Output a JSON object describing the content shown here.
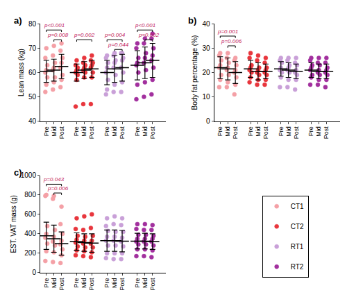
{
  "chart_data": [
    {
      "type": "scatter",
      "title": "a)",
      "y_label": "Lean mass (kg)",
      "categories": [
        "Pre",
        "Mid",
        "Post"
      ],
      "ylim": [
        40,
        80
      ],
      "yticks": [
        40,
        50,
        60,
        70,
        80
      ],
      "grid": false,
      "legend": "bottom right",
      "series": [
        {
          "name": "CT1",
          "color": "#f4a0a6",
          "values": [
            [
              52,
              55,
              58,
              60,
              61,
              63,
              66,
              70
            ],
            [
              53,
              56,
              58,
              61,
              62,
              64,
              67,
              71
            ],
            [
              54,
              57,
              59,
              62,
              64,
              66,
              69,
              72
            ]
          ],
          "mean": [
            60.5,
            61,
            62.5
          ],
          "sd": [
            4.5,
            4.5,
            5
          ]
        },
        {
          "name": "CT2",
          "color": "#e8363d",
          "values": [
            [
              46,
              57,
              59,
              60,
              61,
              62,
              63,
              65
            ],
            [
              47,
              58,
              60,
              61,
              62,
              63,
              64,
              66
            ],
            [
              47,
              58,
              60,
              62,
              63,
              64,
              65,
              67
            ]
          ],
          "mean": [
            60,
            61,
            61.5
          ],
          "sd": [
            3.5,
            3.5,
            3.5
          ]
        },
        {
          "name": "RT1",
          "color": "#c9a0d8",
          "values": [
            [
              51,
              53,
              57,
              60,
              62,
              64,
              66,
              67
            ],
            [
              52,
              55,
              59,
              62,
              64,
              65,
              67,
              68
            ],
            [
              52,
              56,
              60,
              62,
              65,
              66,
              68,
              68
            ]
          ],
          "mean": [
            60,
            61.5,
            62
          ],
          "sd": [
            5,
            5.5,
            5.5
          ]
        },
        {
          "name": "RT2",
          "color": "#a2309e",
          "values": [
            [
              49,
              55,
              60,
              63,
              64,
              66,
              70,
              72
            ],
            [
              50,
              56,
              61,
              64,
              66,
              68,
              72,
              74
            ],
            [
              51,
              57,
              62,
              65,
              67,
              70,
              74,
              76
            ]
          ],
          "mean": [
            63,
            64,
            65
          ],
          "sd": [
            6,
            6.5,
            7
          ]
        }
      ],
      "annotations": [
        {
          "text": "p<0.001",
          "group": "CT1",
          "from": "Pre",
          "to": "Post",
          "y": 77.5
        },
        {
          "text": "p=0.008",
          "group": "CT1",
          "from": "Mid",
          "to": "Post",
          "y": 73.5
        },
        {
          "text": "p=0.002",
          "group": "CT2",
          "from": "Pre",
          "to": "Post",
          "y": 73.5
        },
        {
          "text": "p=0.004",
          "group": "RT1",
          "from": "Pre",
          "to": "Post",
          "y": 73.5
        },
        {
          "text": "p=0.044",
          "group": "RT1",
          "from": "Mid",
          "to": "Post",
          "y": 69.5
        },
        {
          "text": "p<0.001",
          "group": "RT2",
          "from": "Pre",
          "to": "Post",
          "y": 77.5
        },
        {
          "text": "p=0.002",
          "group": "RT2",
          "from": "Mid",
          "to": "Post",
          "y": 73.5
        }
      ]
    },
    {
      "type": "scatter",
      "title": "b)",
      "y_label": "Body fat percentage (%)",
      "categories": [
        "Pre",
        "Mid",
        "Post"
      ],
      "ylim": [
        0,
        40
      ],
      "yticks": [
        0,
        10,
        20,
        30,
        40
      ],
      "grid": false,
      "series": [
        {
          "name": "CT1",
          "color": "#f4a0a6",
          "values": [
            [
              14,
              17,
              19,
              22,
              23,
              25,
              27,
              28
            ],
            [
              14,
              16,
              19,
              21,
              22,
              24,
              26,
              28
            ],
            [
              11,
              15,
              18,
              20,
              21,
              23,
              25,
              26
            ]
          ],
          "mean": [
            22,
            21.5,
            20
          ],
          "sd": [
            4.5,
            4.5,
            4.5
          ]
        },
        {
          "name": "CT2",
          "color": "#e8363d",
          "values": [
            [
              16,
              18,
              20,
              21,
              22,
              23,
              26,
              28
            ],
            [
              15,
              17,
              19,
              20,
              21,
              22,
              25,
              27
            ],
            [
              15,
              17,
              19,
              20,
              21,
              22,
              24,
              26
            ]
          ],
          "mean": [
            21.5,
            20.5,
            20.5
          ],
          "sd": [
            3.5,
            3.5,
            3
          ]
        },
        {
          "name": "RT1",
          "color": "#c9a0d8",
          "values": [
            [
              14,
              18,
              20,
              21,
              22,
              24,
              25,
              26
            ],
            [
              14,
              17,
              20,
              21,
              22,
              23,
              25,
              26
            ],
            [
              13,
              17,
              19,
              20,
              21,
              23,
              24,
              26
            ]
          ],
          "mean": [
            21.5,
            21,
            20.5
          ],
          "sd": [
            3,
            3,
            3
          ]
        },
        {
          "name": "RT2",
          "color": "#a2309e",
          "values": [
            [
              15,
              18,
              19,
              21,
              22,
              23,
              25,
              26
            ],
            [
              15,
              17,
              19,
              20,
              21,
              23,
              24,
              26
            ],
            [
              14,
              17,
              19,
              20,
              21,
              22,
              24,
              26
            ]
          ],
          "mean": [
            21,
            20.5,
            20.5
          ],
          "sd": [
            3,
            3,
            3
          ]
        }
      ],
      "annotations": [
        {
          "text": "p=0.001",
          "group": "CT1",
          "from": "Pre",
          "to": "Post",
          "y": 35
        },
        {
          "text": "p=0.006",
          "group": "CT1",
          "from": "Mid",
          "to": "Post",
          "y": 31
        }
      ]
    },
    {
      "type": "scatter",
      "title": "c)",
      "y_label": "EST. VAT mass (g)",
      "categories": [
        "Pre",
        "Mid",
        "Post"
      ],
      "ylim": [
        0,
        1000
      ],
      "yticks": [
        0,
        200,
        400,
        600,
        800,
        1000
      ],
      "grid": false,
      "series": [
        {
          "name": "CT1",
          "color": "#f4a0a6",
          "values": [
            [
              120,
              220,
              300,
              360,
              400,
              480,
              790,
              800
            ],
            [
              110,
              210,
              280,
              320,
              370,
              440,
              760,
              790
            ],
            [
              100,
              180,
              240,
              290,
              330,
              400,
              500,
              680
            ]
          ],
          "mean": [
            380,
            350,
            300
          ],
          "sd": [
            140,
            140,
            120
          ]
        },
        {
          "name": "CT2",
          "color": "#e8363d",
          "values": [
            [
              180,
              230,
              270,
              310,
              340,
              380,
              450,
              560
            ],
            [
              170,
              220,
              260,
              300,
              330,
              370,
              440,
              580
            ],
            [
              160,
              210,
              260,
              300,
              330,
              380,
              460,
              600
            ]
          ],
          "mean": [
            320,
            310,
            305
          ],
          "sd": [
            90,
            90,
            95
          ]
        },
        {
          "name": "RT1",
          "color": "#c9a0d8",
          "values": [
            [
              150,
              200,
              280,
              330,
              370,
              430,
              480,
              560
            ],
            [
              140,
              200,
              280,
              330,
              370,
              420,
              500,
              580
            ],
            [
              140,
              200,
              270,
              320,
              360,
              420,
              490,
              560
            ]
          ],
          "mean": [
            330,
            330,
            325
          ],
          "sd": [
            110,
            110,
            110
          ]
        },
        {
          "name": "RT2",
          "color": "#a2309e",
          "values": [
            [
              170,
              240,
              290,
              320,
              350,
              390,
              450,
              500
            ],
            [
              170,
              240,
              290,
              320,
              350,
              390,
              440,
              500
            ],
            [
              160,
              230,
              280,
              320,
              350,
              380,
              440,
              490
            ]
          ],
          "mean": [
            325,
            325,
            320
          ],
          "sd": [
            80,
            80,
            80
          ]
        }
      ],
      "annotations": [
        {
          "text": "p=0.043",
          "group": "CT1",
          "from": "Pre",
          "to": "Post",
          "y": 910
        },
        {
          "text": "p=0.006",
          "group": "CT1",
          "from": "Mid",
          "to": "Post",
          "y": 820
        }
      ]
    }
  ]
}
